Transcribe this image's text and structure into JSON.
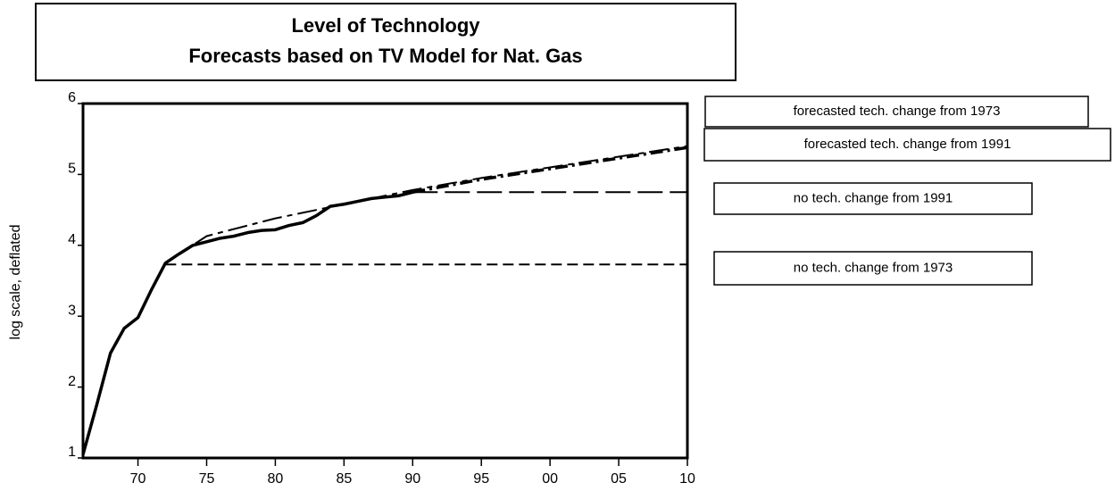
{
  "chart_data": {
    "type": "line",
    "title": "Level of Technology",
    "subtitle": "Forecasts based on TV Model for Nat. Gas",
    "y_label": "log scale, deflated",
    "xlim": [
      1966,
      2010
    ],
    "xticks": [
      {
        "value": 1970,
        "label": "70"
      },
      {
        "value": 1975,
        "label": "75"
      },
      {
        "value": 1980,
        "label": "80"
      },
      {
        "value": 1985,
        "label": "85"
      },
      {
        "value": 1990,
        "label": "90"
      },
      {
        "value": 1995,
        "label": "95"
      },
      {
        "value": 2000,
        "label": "00"
      },
      {
        "value": 2005,
        "label": "05"
      },
      {
        "value": 2010,
        "label": "10"
      }
    ],
    "ylim": [
      1,
      6
    ],
    "yticks": [
      1,
      2,
      3,
      4,
      5,
      6
    ],
    "series": [
      {
        "name": "forecasted tech. change from 1973",
        "color": "#000000",
        "line_style": "long-short-dash",
        "line_weight": "thin",
        "x": [
          1972,
          1975,
          1980,
          1985,
          1990,
          1995,
          2000,
          2005,
          2010
        ],
        "values": [
          3.75,
          4.13,
          4.38,
          4.58,
          4.78,
          4.95,
          5.1,
          5.25,
          5.4
        ]
      },
      {
        "name": "forecasted tech. change from 1991",
        "color": "#000000",
        "line_style": "dash-dot",
        "line_weight": "thick",
        "x": [
          1990,
          1995,
          2000,
          2005,
          2010
        ],
        "values": [
          4.75,
          4.93,
          5.08,
          5.23,
          5.38
        ]
      },
      {
        "name": "no tech. change from 1991",
        "color": "#000000",
        "line_style": "long-dash",
        "line_weight": "thin",
        "x": [
          1990,
          2010
        ],
        "values": [
          4.75,
          4.75
        ]
      },
      {
        "name": "no tech. change from 1973",
        "color": "#000000",
        "line_style": "dash",
        "line_weight": "thin",
        "x": [
          1972,
          2010
        ],
        "values": [
          3.73,
          3.73
        ]
      },
      {
        "name": null,
        "color": "#000000",
        "line_style": "solid",
        "line_weight": "thick",
        "x": [
          1966,
          1967,
          1968,
          1969,
          1970,
          1971,
          1972,
          1973,
          1974,
          1975,
          1976,
          1977,
          1978,
          1979,
          1980,
          1981,
          1982,
          1983,
          1984,
          1985,
          1986,
          1987,
          1988,
          1989,
          1990
        ],
        "values": [
          1.05,
          1.75,
          2.48,
          2.83,
          2.98,
          3.38,
          3.75,
          3.88,
          4.0,
          4.05,
          4.1,
          4.13,
          4.18,
          4.21,
          4.22,
          4.28,
          4.32,
          4.42,
          4.55,
          4.58,
          4.62,
          4.66,
          4.68,
          4.7,
          4.75
        ]
      }
    ]
  }
}
